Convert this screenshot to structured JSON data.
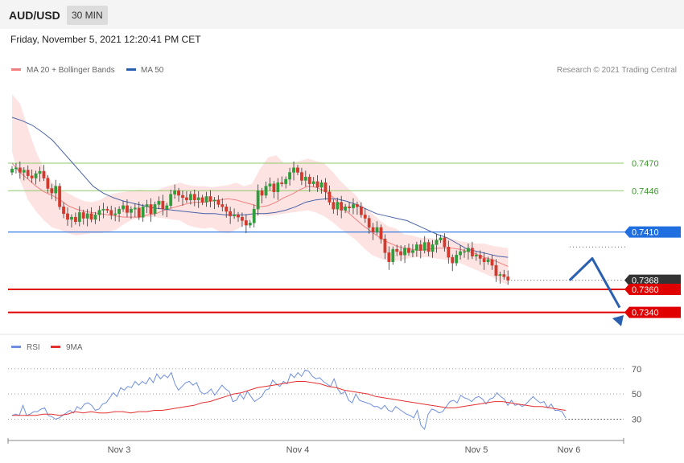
{
  "header": {
    "pair": "AUD/USD",
    "timeframe": "30 MIN"
  },
  "date": "Friday, November 5, 2021 12:20:41 PM CET",
  "credit": "Research © 2021 Trading Central",
  "colors": {
    "candle_up": "#2e9e3b",
    "candle_down": "#d3392c",
    "band": "#fde0df",
    "ma20": "#f08080",
    "ma50": "#4a63a8",
    "resistance": "#8fc96b",
    "pivot": "#1f6fe0",
    "support": "#e00000",
    "current": "#333333",
    "forecast": "#2b5fb0",
    "rsi": "#6f8fe0",
    "rsi_ma": "#e53030"
  },
  "chart_data": [
    {
      "type": "candlestick",
      "legend": [
        {
          "name": "MA 20 + Bollinger Bands",
          "color": "#f08080"
        },
        {
          "name": "MA 50",
          "color": "#2b5fb0"
        }
      ],
      "x_labels": [
        "Nov 3",
        "Nov 4",
        "Nov 5",
        "Nov 6"
      ],
      "ylim": [
        0.7325,
        0.7545
      ],
      "levels": [
        {
          "label": "0.7470",
          "value": 0.747,
          "role": "resistance",
          "boxed": false
        },
        {
          "label": "0.7446",
          "value": 0.7446,
          "role": "resistance",
          "boxed": false
        },
        {
          "label": "0.7410",
          "value": 0.741,
          "role": "pivot",
          "boxed": true
        },
        {
          "label": "0.7368",
          "value": 0.7368,
          "role": "current",
          "boxed": true
        },
        {
          "label": "0.7360",
          "value": 0.736,
          "role": "support",
          "boxed": true
        },
        {
          "label": "0.7340",
          "value": 0.734,
          "role": "support",
          "boxed": true
        }
      ],
      "close": [
        0.7465,
        0.7466,
        0.7462,
        0.7464,
        0.7459,
        0.7457,
        0.7461,
        0.7463,
        0.7457,
        0.7448,
        0.7444,
        0.745,
        0.7432,
        0.7426,
        0.7421,
        0.7423,
        0.7419,
        0.7427,
        0.7422,
        0.7426,
        0.7421,
        0.7425,
        0.7429,
        0.743,
        0.7429,
        0.7425,
        0.7426,
        0.743,
        0.7433,
        0.7427,
        0.743,
        0.7431,
        0.7423,
        0.7432,
        0.7434,
        0.7426,
        0.7434,
        0.7437,
        0.743,
        0.7433,
        0.7443,
        0.7446,
        0.7442,
        0.744,
        0.7438,
        0.7443,
        0.7438,
        0.744,
        0.7436,
        0.7441,
        0.7437,
        0.7438,
        0.7434,
        0.7432,
        0.7428,
        0.7424,
        0.7425,
        0.7423,
        0.742,
        0.7416,
        0.7418,
        0.743,
        0.7446,
        0.7442,
        0.745,
        0.7452,
        0.7445,
        0.7453,
        0.7452,
        0.7456,
        0.7462,
        0.7466,
        0.7462,
        0.7455,
        0.7458,
        0.7452,
        0.7454,
        0.7449,
        0.7453,
        0.7445,
        0.7436,
        0.743,
        0.7436,
        0.7429,
        0.7432,
        0.7431,
        0.7434,
        0.7432,
        0.7425,
        0.7422,
        0.7414,
        0.741,
        0.7414,
        0.7404,
        0.7392,
        0.7384,
        0.7395,
        0.7393,
        0.739,
        0.7396,
        0.7392,
        0.7394,
        0.7399,
        0.7394,
        0.7401,
        0.7393,
        0.7399,
        0.7403,
        0.7405,
        0.7397,
        0.7388,
        0.7383,
        0.739,
        0.7393,
        0.7393,
        0.7396,
        0.7389,
        0.739,
        0.7387,
        0.7384,
        0.7386,
        0.7381,
        0.7372,
        0.7373,
        0.7371,
        0.7368
      ],
      "ma20": [
        0.747,
        0.7462,
        0.7456,
        0.745,
        0.7445,
        0.7442,
        0.7438,
        0.7433,
        0.743,
        0.7428,
        0.7427,
        0.7426,
        0.7425,
        0.7424,
        0.7423,
        0.7423,
        0.7423,
        0.7425,
        0.7426,
        0.7429,
        0.7431,
        0.7433,
        0.7435,
        0.7436,
        0.7436,
        0.7437,
        0.7438,
        0.7439,
        0.7438,
        0.7436,
        0.7434,
        0.7432,
        0.7433,
        0.7436,
        0.744,
        0.7443,
        0.7447,
        0.745,
        0.7449,
        0.7446,
        0.7441,
        0.7434,
        0.7427,
        0.7421,
        0.7415,
        0.741,
        0.7405,
        0.7401,
        0.7398,
        0.7396,
        0.7395,
        0.7394,
        0.7395,
        0.7396,
        0.7396,
        0.7396,
        0.7395,
        0.7393,
        0.7391,
        0.7388,
        0.7386,
        0.7383,
        0.738
      ],
      "bb_upper": [
        0.753,
        0.7522,
        0.75,
        0.748,
        0.7465,
        0.7453,
        0.7447,
        0.7444,
        0.744,
        0.7437,
        0.7436,
        0.7438,
        0.7442,
        0.7444,
        0.7445,
        0.7446,
        0.7447,
        0.7446,
        0.7446,
        0.7449,
        0.7451,
        0.7453,
        0.7451,
        0.745,
        0.745,
        0.7449,
        0.745,
        0.7451,
        0.7453,
        0.745,
        0.7452,
        0.7465,
        0.7475,
        0.7477,
        0.747,
        0.747,
        0.7472,
        0.7474,
        0.7472,
        0.747,
        0.7463,
        0.7455,
        0.7448,
        0.7442,
        0.7432,
        0.7426,
        0.742,
        0.7415,
        0.7413,
        0.7408,
        0.7407,
        0.7405,
        0.7405,
        0.7404,
        0.7405,
        0.7404,
        0.7402,
        0.7401,
        0.74,
        0.74,
        0.7398,
        0.7397,
        0.7396
      ],
      "bb_lower": [
        0.748,
        0.7455,
        0.7438,
        0.7428,
        0.742,
        0.7414,
        0.7412,
        0.7409,
        0.7407,
        0.7408,
        0.7409,
        0.7409,
        0.741,
        0.7412,
        0.7417,
        0.7421,
        0.7422,
        0.7423,
        0.7423,
        0.7422,
        0.7421,
        0.742,
        0.7416,
        0.7414,
        0.7413,
        0.7414,
        0.741,
        0.7409,
        0.7412,
        0.7416,
        0.7422,
        0.7425,
        0.7424,
        0.7425,
        0.7426,
        0.7427,
        0.7428,
        0.7429,
        0.7427,
        0.7424,
        0.7419,
        0.7413,
        0.7408,
        0.7403,
        0.7396,
        0.739,
        0.7387,
        0.7385,
        0.7385,
        0.7386,
        0.7388,
        0.7388,
        0.7388,
        0.7387,
        0.7386,
        0.7385,
        0.7383,
        0.738,
        0.7377,
        0.7374,
        0.7371,
        0.7367,
        0.7364
      ],
      "ma50": [
        0.751,
        0.7507,
        0.7503,
        0.7497,
        0.749,
        0.748,
        0.747,
        0.746,
        0.745,
        0.7444,
        0.744,
        0.7437,
        0.7435,
        0.7433,
        0.7431,
        0.743,
        0.7429,
        0.7428,
        0.7427,
        0.7426,
        0.7426,
        0.7425,
        0.7425,
        0.7425,
        0.7426,
        0.7426,
        0.7427,
        0.7429,
        0.7432,
        0.7436,
        0.7438,
        0.7439,
        0.7439,
        0.7437,
        0.7434,
        0.743,
        0.7426,
        0.7424,
        0.7422,
        0.742,
        0.7416,
        0.7412,
        0.7408,
        0.7405,
        0.74,
        0.7395,
        0.7393,
        0.7391,
        0.7389,
        0.7388
      ],
      "forecast": [
        0.7368,
        0.7387,
        0.734
      ]
    },
    {
      "type": "line",
      "legend": [
        {
          "name": "RSI",
          "color": "#6f8fe0"
        },
        {
          "name": "9MA",
          "color": "#e53030"
        }
      ],
      "ylim": [
        15,
        82
      ],
      "levels": [
        70,
        50,
        30
      ],
      "rsi": [
        33,
        34,
        33,
        41,
        33,
        34,
        36,
        36,
        38,
        39,
        33,
        32,
        30,
        31,
        33,
        35,
        37,
        35,
        40,
        38,
        42,
        43,
        41,
        37,
        38,
        42,
        43,
        47,
        51,
        48,
        55,
        53,
        56,
        55,
        60,
        57,
        60,
        58,
        63,
        59,
        66,
        62,
        65,
        63,
        67,
        58,
        53,
        56,
        59,
        60,
        57,
        59,
        52,
        50,
        51,
        54,
        49,
        53,
        57,
        54,
        52,
        44,
        45,
        50,
        46,
        52,
        48,
        44,
        46,
        48,
        53,
        54,
        61,
        58,
        56,
        60,
        58,
        66,
        63,
        67,
        64,
        69,
        68,
        64,
        62,
        63,
        60,
        58,
        56,
        62,
        54,
        50,
        52,
        45,
        43,
        50,
        45,
        44,
        43,
        42,
        40,
        40,
        38,
        41,
        37,
        36,
        40,
        38,
        36,
        34,
        33,
        31,
        37,
        25,
        22,
        34,
        38,
        37,
        35,
        36,
        40,
        44,
        45,
        43,
        49,
        47,
        46,
        44,
        47,
        48,
        46,
        42,
        46,
        47,
        51,
        48,
        46,
        41,
        45,
        41,
        42,
        40,
        42,
        45,
        48,
        45,
        43,
        44,
        39,
        42,
        37,
        37,
        36,
        31
      ],
      "rsi_ma": [
        33,
        33,
        33,
        33,
        34,
        34,
        33,
        34,
        36,
        35,
        36,
        35,
        35,
        36,
        36,
        35,
        36,
        36,
        37,
        37,
        38,
        39,
        40,
        41,
        43,
        44,
        46,
        48,
        50,
        51,
        53,
        55,
        56,
        57,
        58,
        59,
        60,
        60,
        59,
        58,
        56,
        55,
        53,
        52,
        51,
        50,
        48,
        47,
        46,
        45,
        44,
        43,
        42,
        41,
        40,
        39,
        39,
        40,
        41,
        42,
        43,
        44,
        44,
        43,
        42,
        41,
        40,
        40,
        39,
        38,
        37
      ]
    }
  ]
}
